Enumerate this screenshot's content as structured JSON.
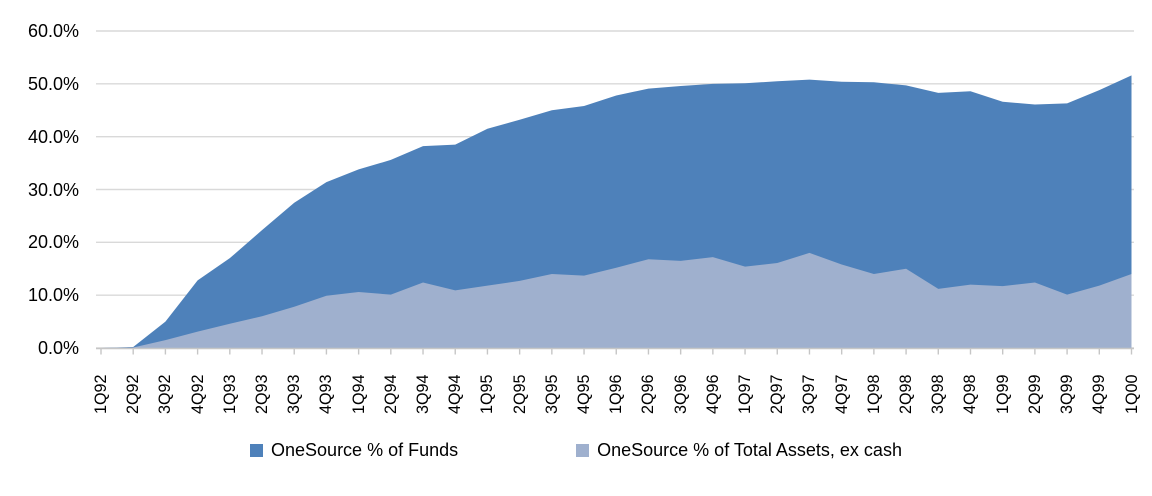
{
  "chart_data": {
    "type": "area",
    "title": "",
    "overlapping": true,
    "categories": [
      "1Q92",
      "2Q92",
      "3Q92",
      "4Q92",
      "1Q93",
      "2Q93",
      "3Q93",
      "4Q93",
      "1Q94",
      "2Q94",
      "3Q94",
      "4Q94",
      "1Q95",
      "2Q95",
      "3Q95",
      "4Q95",
      "1Q96",
      "2Q96",
      "3Q96",
      "4Q96",
      "1Q97",
      "2Q97",
      "3Q97",
      "4Q97",
      "1Q98",
      "2Q98",
      "3Q98",
      "4Q98",
      "1Q99",
      "2Q99",
      "3Q99",
      "4Q99",
      "1Q00"
    ],
    "series": [
      {
        "name": "OneSource % of Funds",
        "color": "#4E81BA",
        "values": [
          0,
          0.2,
          5.0,
          12.8,
          17.0,
          22.3,
          27.5,
          31.4,
          33.8,
          35.6,
          38.2,
          38.5,
          41.5,
          43.2,
          45.0,
          45.8,
          47.8,
          49.1,
          49.6,
          50.0,
          50.1,
          50.5,
          50.8,
          50.4,
          50.3,
          49.7,
          48.3,
          48.6,
          46.6,
          46.1,
          46.3,
          48.8,
          51.6
        ]
      },
      {
        "name": "OneSource % of Total Assets, ex cash",
        "color": "#9FB0CE",
        "values": [
          0,
          0.1,
          1.5,
          3.1,
          4.6,
          6.0,
          7.8,
          9.9,
          10.6,
          10.1,
          12.4,
          10.9,
          11.8,
          12.7,
          14.0,
          13.7,
          15.2,
          16.8,
          16.5,
          17.2,
          15.4,
          16.1,
          18.0,
          15.8,
          14.0,
          15.0,
          11.2,
          12.0,
          11.7,
          12.4,
          10.1,
          11.8,
          14.0
        ]
      }
    ],
    "y_axis": {
      "tick_labels": [
        "60.0%",
        "50.0%",
        "40.0%",
        "30.0%",
        "20.0%",
        "10.0%",
        "0.0%"
      ],
      "tick_values": [
        60,
        50,
        40,
        30,
        20,
        10,
        0
      ],
      "min": 0,
      "max": 60,
      "unit": "%"
    },
    "x_axis": {
      "label_rotation": -90
    },
    "grid": "horizontal",
    "legend_position": "bottom",
    "colors": {
      "gridline": "#D9D9D9",
      "axis_line": "#C6C6C6",
      "text": "#000000",
      "background": "#FFFFFF"
    }
  }
}
